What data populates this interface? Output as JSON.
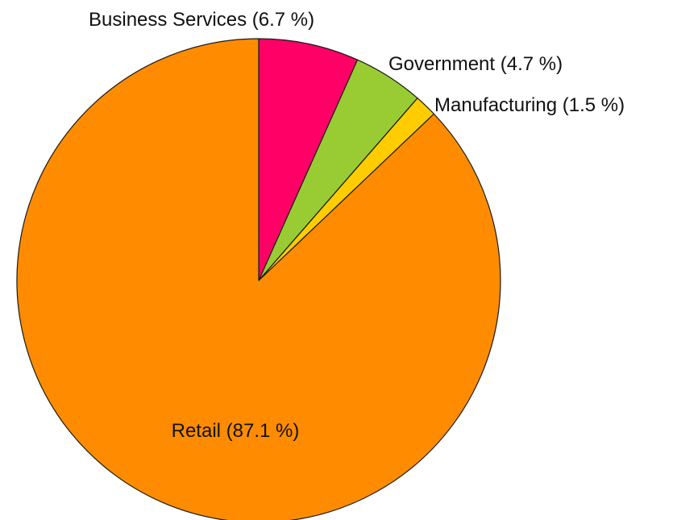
{
  "chart_data": {
    "type": "pie",
    "title": "",
    "unit": "%",
    "start_angle": "12 o'clock, clockwise",
    "slices": [
      {
        "label": "Business Services (6.7 %)",
        "category": "Business Services",
        "value": 6.7,
        "color": "#ff0066"
      },
      {
        "label": "Government (4.7 %)",
        "category": "Government",
        "value": 4.7,
        "color": "#99cc33"
      },
      {
        "label": "Manufacturing (1.5 %)",
        "category": "Manufacturing",
        "value": 1.5,
        "color": "#ffcc00"
      },
      {
        "label": "Retail (87.1 %)",
        "category": "Retail",
        "value": 87.1,
        "color": "#ff8c00"
      }
    ]
  }
}
